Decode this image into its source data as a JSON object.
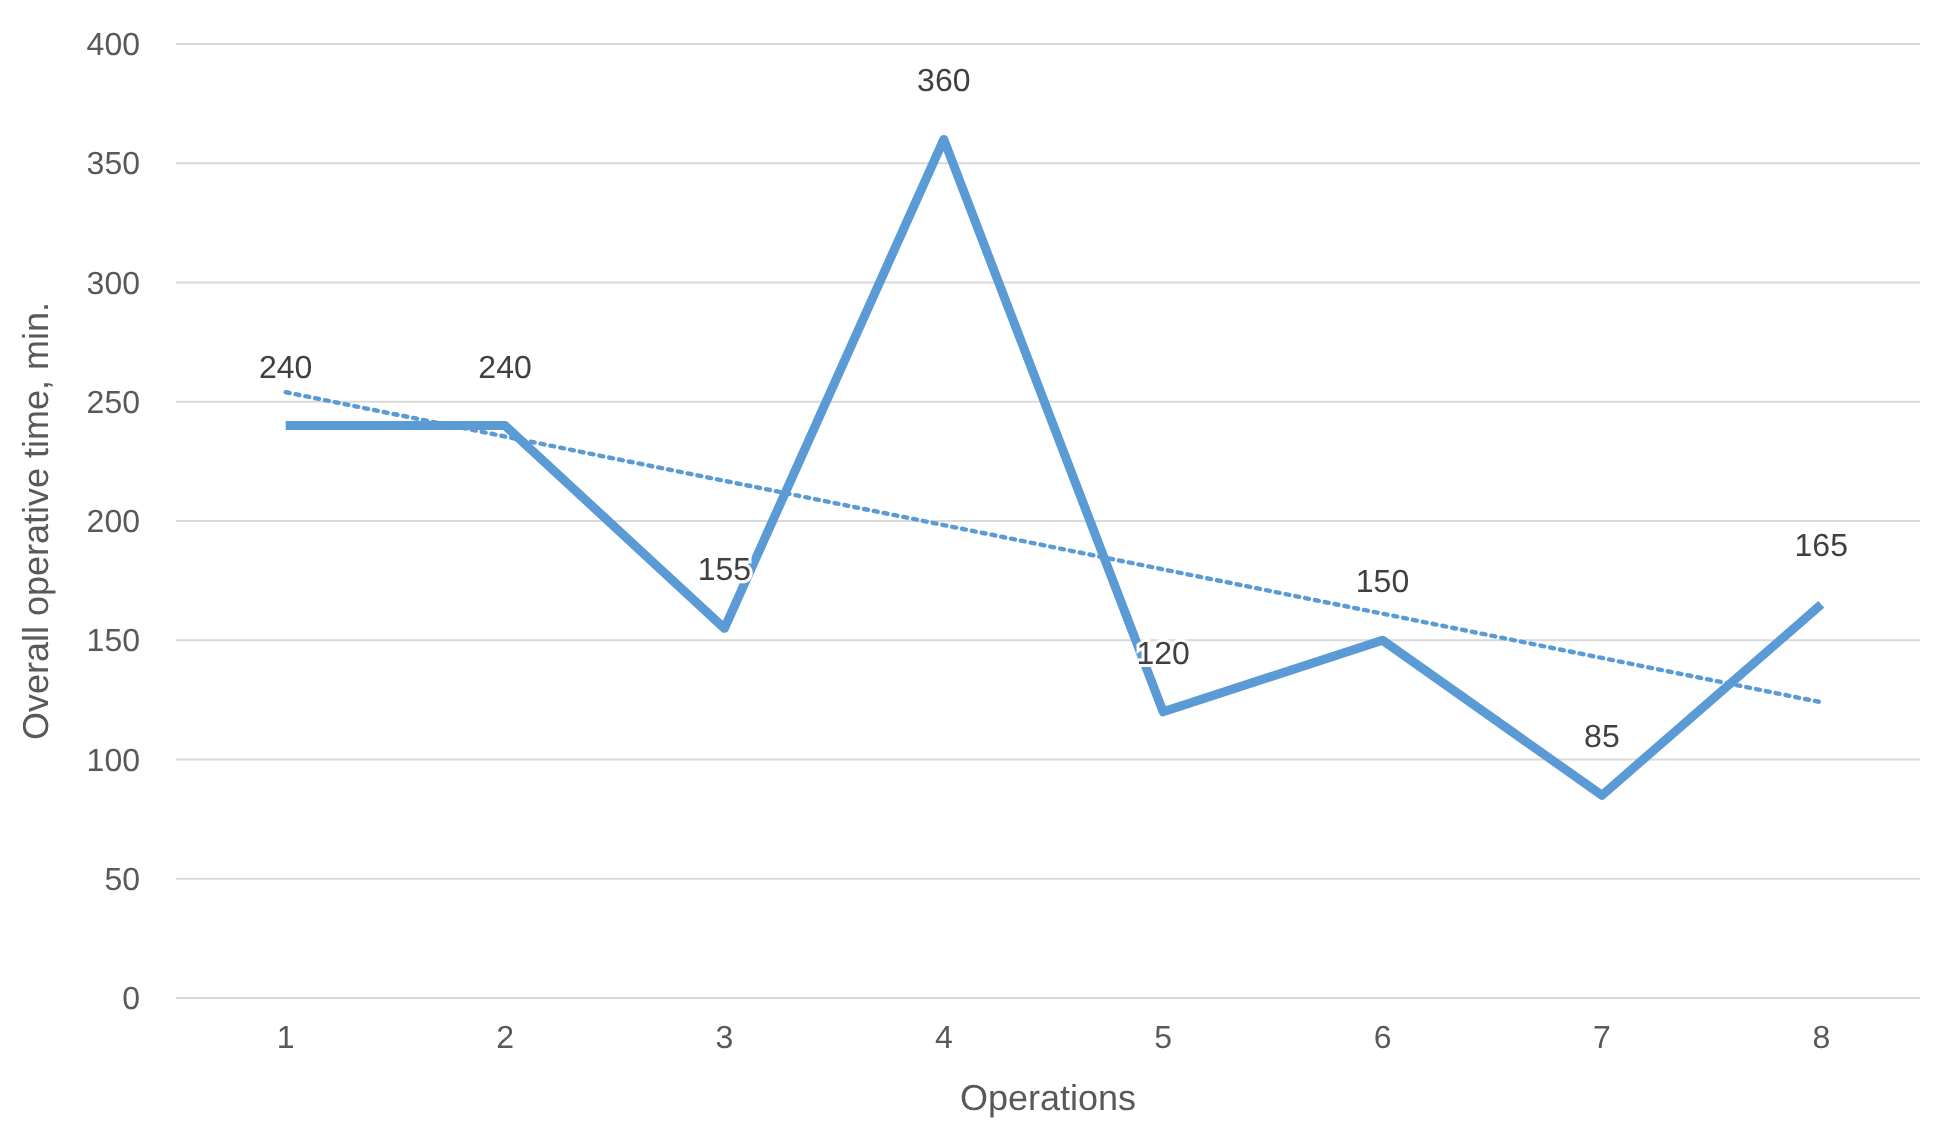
{
  "chart_data": {
    "type": "line",
    "xlabel": "Operations",
    "ylabel": "Overall operative time, min.",
    "x": [
      1,
      2,
      3,
      4,
      5,
      6,
      7,
      8
    ],
    "xlim": [
      0.5,
      8.45
    ],
    "xticks": [
      1,
      2,
      3,
      4,
      5,
      6,
      7,
      8
    ],
    "ylim": [
      0,
      400
    ],
    "yticks": [
      0,
      50,
      100,
      150,
      200,
      250,
      300,
      350,
      400
    ],
    "grid": "y",
    "marker": "none",
    "series": [
      {
        "color": "#5b9bd5",
        "values": [
          240,
          240,
          155,
          360,
          120,
          150,
          85,
          165
        ],
        "value_labels": [
          "240",
          "240",
          "155",
          "360",
          "120",
          "150",
          "85",
          "165"
        ],
        "line_style": "solid"
      },
      {
        "type": "line",
        "color": "#5b9bd5",
        "x": [
          1,
          8
        ],
        "values": [
          254,
          124
        ],
        "line_style": "dotted"
      }
    ]
  }
}
